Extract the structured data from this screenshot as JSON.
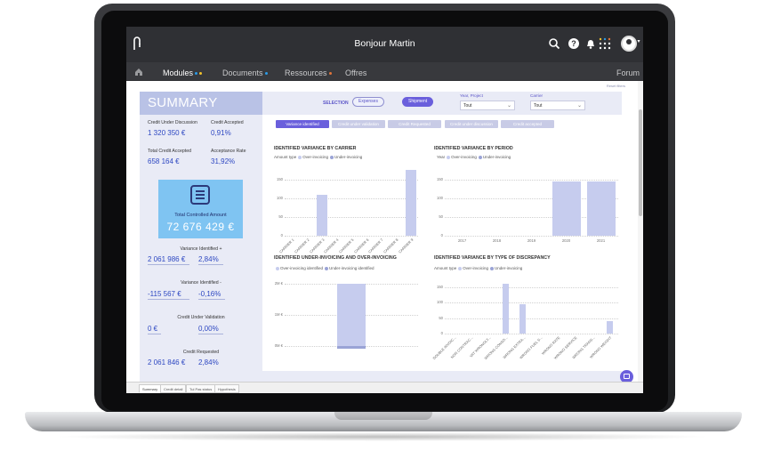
{
  "topbar": {
    "greeting": "Bonjour Martin"
  },
  "nav": [
    {
      "label": "Modules",
      "dot_colors": [
        "#2b9be6",
        "#f0c12c"
      ]
    },
    {
      "label": "Documents",
      "dot_colors": [
        "#2b9be6"
      ]
    },
    {
      "label": "Ressources",
      "dot_colors": [
        "#e0743a"
      ]
    },
    {
      "label": "Offres",
      "dot_colors": []
    },
    {
      "label": "Forum",
      "dot_colors": []
    }
  ],
  "reset_link": "Reset filters",
  "summary_title": "SUMMARY",
  "selection": {
    "label": "SELECTION",
    "expenses": "Expenses",
    "shipment": "Shipment",
    "year_label": "Year, Project",
    "year_value": "Tout",
    "carrier_label": "Carrier",
    "carrier_value": "Tout"
  },
  "kpis": {
    "credit_under_discussion_label": "Credit Under Discussion",
    "credit_under_discussion_value": "1 320 350 €",
    "credit_accepted_label": "Credit Accepted",
    "credit_accepted_value": "0,91%",
    "total_credit_accepted_label": "Total Credit Accepted",
    "total_credit_accepted_value": "658 164 €",
    "acceptance_rate_label": "Acceptance Rate",
    "acceptance_rate_value": "31,92%",
    "total_controlled_label": "Total Controlled Amount",
    "total_controlled_value": "72 676 429 €",
    "variance_plus_label": "Variance Identified +",
    "variance_plus_amount": "2 061 986 €",
    "variance_plus_pct": "2,84%",
    "variance_minus_label": "Variance Identified -",
    "variance_minus_amount": "-115 567 €",
    "variance_minus_pct": "-0,16%",
    "credit_validation_label": "Credit Under Validation",
    "credit_validation_amount": "0 €",
    "credit_validation_pct": "0,00%",
    "credit_requested_label": "Credit Requested",
    "credit_requested_amount": "2 061 846 €",
    "credit_requested_pct": "2,84%"
  },
  "filter_buttons": [
    "Variance identified",
    "Credit under validation",
    "Credit Requested",
    "Credit under discussion",
    "Credit accepted"
  ],
  "legend": {
    "amount_type": "Amount type",
    "year": "Year",
    "over": "Over-invoicing",
    "under": "Under-invoicing",
    "over_identified": "Over-invoicing identified",
    "under_identified": "Under-invoicing identified"
  },
  "colors": {
    "over": "#c6ccee",
    "under": "#9aa3d6",
    "accent": "#6a5fdc",
    "kpi": "#2e48c2"
  },
  "chart_data": [
    {
      "type": "bar",
      "title": "IDENTIFIED VARIANCE BY CARRIER",
      "categories": [
        "CARRIER 1",
        "CARRIER 2",
        "CARRIER 3",
        "CARRIER 4",
        "CARRIER 5",
        "CARRIER 6",
        "CARRIER 7",
        "CARRIER 8",
        "CARRIER 9"
      ],
      "values": [
        0,
        0,
        110,
        0,
        0,
        0,
        0,
        0,
        175
      ],
      "yticks": [
        "0",
        "50",
        "100",
        "150"
      ],
      "ylim": [
        0,
        190
      ]
    },
    {
      "type": "bar",
      "title": "IDENTIFIED VARIANCE BY PERIOD",
      "categories": [
        "2017",
        "2018",
        "2019",
        "2020",
        "2021"
      ],
      "values": [
        0,
        0,
        0,
        145,
        145
      ],
      "yticks": [
        "0",
        "50",
        "100",
        "150"
      ],
      "ylim": [
        0,
        190
      ]
    },
    {
      "type": "bar",
      "title": "IDENTIFIED UNDER-INVOICING AND OVER-INVOICING",
      "categories": [
        ""
      ],
      "series": [
        {
          "name": "Over-invoicing identified",
          "values": [
            2.0
          ]
        },
        {
          "name": "Under-invoicing identified",
          "values": [
            -0.1
          ]
        }
      ],
      "yticks": [
        "2M €",
        "1M €",
        "0M €"
      ],
      "ylim": [
        -0.3,
        2.3
      ]
    },
    {
      "type": "bar",
      "title": "IDENTIFIED VARIANCE BY TYPE OF DISCREPANCY",
      "categories": [
        "DOUBLE INVOIC...",
        "NON CONTRAC...",
        "VAT WRONGLY...",
        "WRONG CONSO...",
        "WRONG EXTRA...",
        "WRONG FUEL S...",
        "WRONG RATE",
        "WRONG SERVICE",
        "WRONG TRANS...",
        "WRONG WEIGHT"
      ],
      "values": [
        0,
        0,
        0,
        160,
        95,
        0,
        0,
        0,
        0,
        40
      ],
      "yticks": [
        "0",
        "50",
        "100",
        "150"
      ],
      "ylim": [
        0,
        190
      ]
    }
  ],
  "bottom_tabs": [
    "Summary",
    "Credit detail",
    "Tul Pas status",
    "Hypothesis"
  ]
}
